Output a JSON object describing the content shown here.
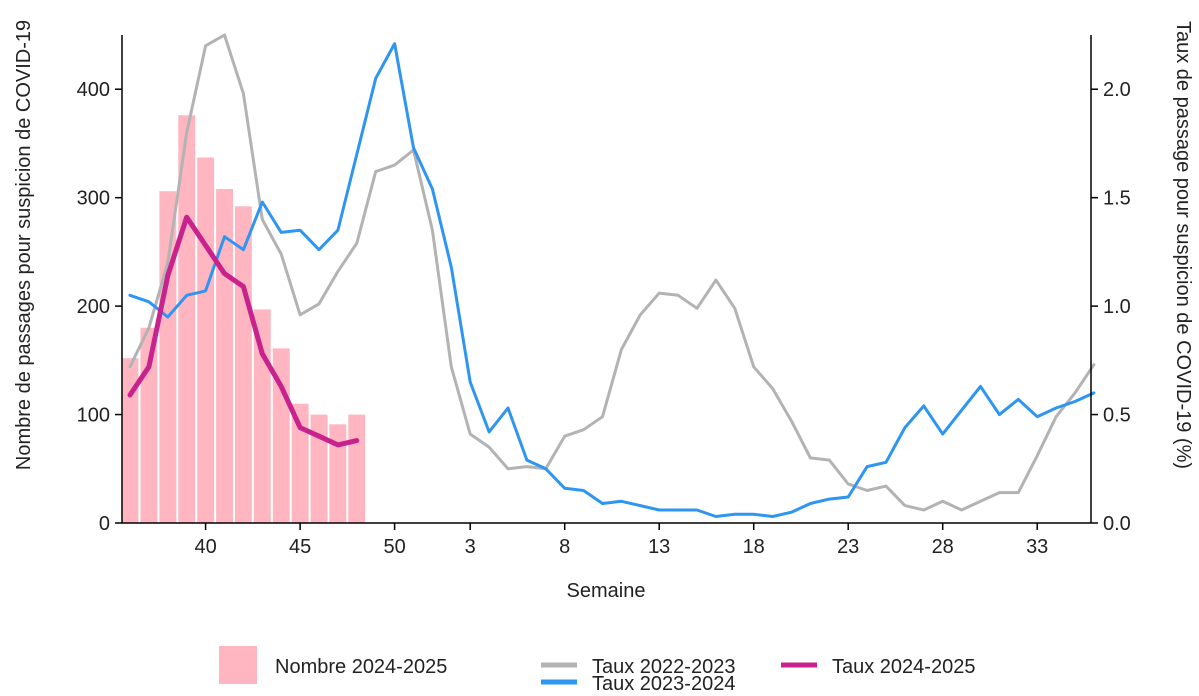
{
  "chart_data": {
    "type": "bar",
    "xlabel": "Semaine",
    "ylabel_left": "Nombre de passages pour suspicion de COVID-19",
    "ylabel_right": "Taux de passage pour suspicion de COVID-19 (%)",
    "y_left_lim": [
      0,
      450
    ],
    "y_right_lim": [
      0,
      2.25
    ],
    "y_left_ticks": [
      0,
      100,
      200,
      300,
      400
    ],
    "y_right_ticks": [
      "0.0",
      "0.5",
      "1.0",
      "1.5",
      "2.0"
    ],
    "weeks": [
      36,
      37,
      38,
      39,
      40,
      41,
      42,
      43,
      44,
      45,
      46,
      47,
      48,
      49,
      50,
      51,
      52,
      1,
      2,
      3,
      4,
      5,
      6,
      7,
      8,
      9,
      10,
      11,
      12,
      13,
      14,
      15,
      16,
      17,
      18,
      19,
      20,
      21,
      22,
      23,
      24,
      25,
      26,
      27,
      28,
      29,
      30,
      31,
      32,
      33,
      34,
      35
    ],
    "x_tick_labels": [
      "40",
      "45",
      "50",
      "3",
      "8",
      "13",
      "18",
      "23",
      "28",
      "33"
    ],
    "x_tick_week_index": [
      4,
      9,
      14,
      18,
      23,
      28,
      33,
      38,
      43,
      48
    ],
    "grid": false,
    "legend_position": "bottom",
    "bars": {
      "name": "Nombre 2024-2025",
      "color": "#FFB6C1",
      "values": [
        152,
        180,
        306,
        376,
        337,
        308,
        292,
        197,
        161,
        110,
        100,
        91,
        100
      ]
    },
    "series": [
      {
        "name": "Taux 2022-2023",
        "color": "#B3B3B3",
        "values": [
          0.72,
          0.9,
          1.2,
          1.8,
          2.2,
          2.25,
          1.98,
          1.4,
          1.24,
          0.96,
          1.01,
          1.16,
          1.29,
          1.62,
          1.65,
          1.72,
          1.35,
          0.72,
          0.41,
          0.35,
          0.25,
          0.26,
          0.25,
          0.4,
          0.43,
          0.49,
          0.8,
          0.96,
          1.06,
          1.05,
          0.99,
          1.12,
          0.99,
          0.72,
          0.62,
          0.47,
          0.3,
          0.29,
          0.18,
          0.15,
          0.17,
          0.08,
          0.06,
          0.1,
          0.06,
          0.1,
          0.14,
          0.14,
          0.31,
          0.49,
          0.6,
          0.73
        ]
      },
      {
        "name": "Taux 2023-2024",
        "color": "#2E95F2",
        "values": [
          1.05,
          1.02,
          0.95,
          1.05,
          1.07,
          1.32,
          1.26,
          1.48,
          1.34,
          1.35,
          1.26,
          1.35,
          1.7,
          2.05,
          2.21,
          1.73,
          1.54,
          1.18,
          0.65,
          0.42,
          0.53,
          0.29,
          0.25,
          0.16,
          0.15,
          0.09,
          0.1,
          0.08,
          0.06,
          0.06,
          0.06,
          0.03,
          0.04,
          0.04,
          0.03,
          0.05,
          0.09,
          0.11,
          0.12,
          0.26,
          0.28,
          0.44,
          0.54,
          0.41,
          0.52,
          0.63,
          0.5,
          0.57,
          0.49,
          0.53,
          0.56,
          0.6
        ]
      },
      {
        "name": "Taux 2024-2025",
        "color": "#C8228F",
        "values": [
          0.59,
          0.72,
          1.14,
          1.41,
          1.28,
          1.15,
          1.09,
          0.78,
          0.63,
          0.44,
          0.4,
          0.36,
          0.38
        ]
      }
    ],
    "legend": {
      "bars_label": "Nombre 2024-2025",
      "line1_label": "Taux 2022-2023",
      "line2_label": "Taux 2024-2025",
      "line3_label": "Taux 2023-2024"
    }
  }
}
